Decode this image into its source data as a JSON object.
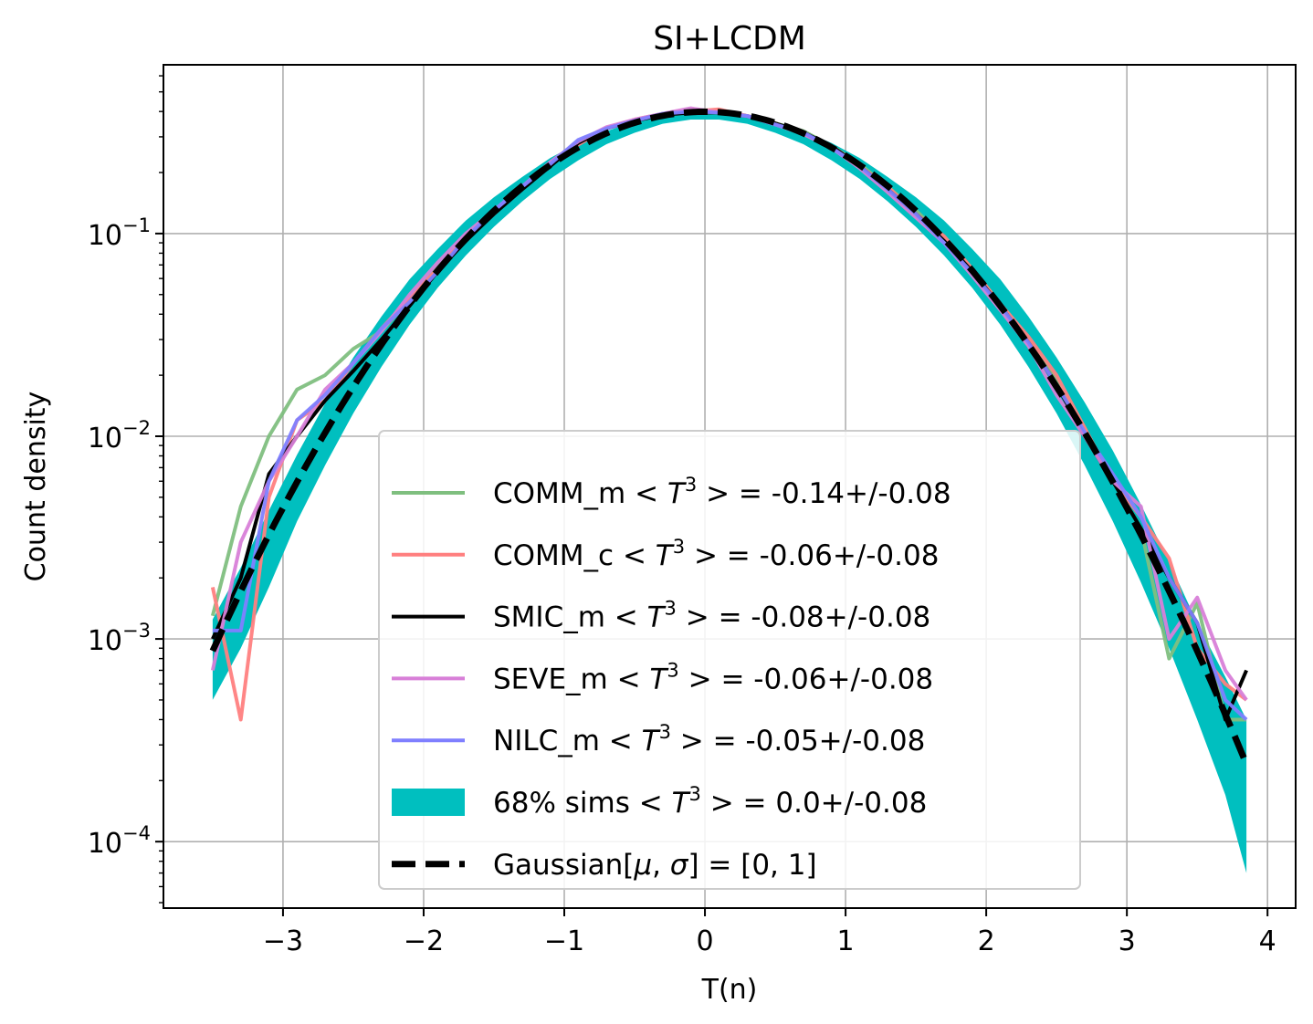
{
  "chart_data": {
    "type": "line",
    "title": "SI+LCDM",
    "xlabel": "T(n)",
    "ylabel": "Count density",
    "yscale": "log",
    "xlim": [
      -3.85,
      4.2
    ],
    "ylim": [
      4.7e-05,
      0.68
    ],
    "grid": true,
    "legend_position": "lower-center",
    "x_ticks": [
      {
        "value": -3,
        "label": "−3"
      },
      {
        "value": -2,
        "label": "−2"
      },
      {
        "value": -1,
        "label": "−1"
      },
      {
        "value": 0,
        "label": "0"
      },
      {
        "value": 1,
        "label": "1"
      },
      {
        "value": 2,
        "label": "2"
      },
      {
        "value": 3,
        "label": "3"
      },
      {
        "value": 4,
        "label": "4"
      }
    ],
    "y_ticks": [
      {
        "value": 0.1,
        "base": "10",
        "exp": "−1"
      },
      {
        "value": 0.01,
        "base": "10",
        "exp": "−2"
      },
      {
        "value": 0.001,
        "base": "10",
        "exp": "−3"
      },
      {
        "value": 0.0001,
        "base": "10",
        "exp": "−4"
      }
    ],
    "x": [
      -3.5,
      -3.3,
      -3.1,
      -2.9,
      -2.7,
      -2.5,
      -2.3,
      -2.1,
      -1.9,
      -1.7,
      -1.5,
      -1.3,
      -1.1,
      -0.9,
      -0.7,
      -0.5,
      -0.3,
      -0.1,
      0.1,
      0.3,
      0.5,
      0.7,
      0.9,
      1.1,
      1.3,
      1.5,
      1.7,
      1.9,
      2.1,
      2.3,
      2.5,
      2.7,
      2.9,
      3.1,
      3.3,
      3.5,
      3.7,
      3.85
    ],
    "series": [
      {
        "name": "COMM_m",
        "stat_value": "-0.14+/-0.08",
        "color": "#7fbf7f",
        "width": 4,
        "values": [
          0.0013,
          0.0045,
          0.01,
          0.017,
          0.02,
          0.027,
          0.033,
          0.047,
          0.068,
          0.095,
          0.13,
          0.17,
          0.22,
          0.28,
          0.33,
          0.36,
          0.385,
          0.395,
          0.395,
          0.38,
          0.35,
          0.32,
          0.27,
          0.22,
          0.17,
          0.13,
          0.095,
          0.067,
          0.045,
          0.03,
          0.019,
          0.011,
          0.006,
          0.0035,
          0.0008,
          0.0015,
          0.0004,
          0.0004
        ]
      },
      {
        "name": "COMM_c",
        "stat_value": "-0.06+/-0.08",
        "color": "#ff7f7f",
        "width": 4,
        "values": [
          0.0018,
          0.0004,
          0.005,
          0.012,
          0.015,
          0.023,
          0.034,
          0.048,
          0.067,
          0.097,
          0.125,
          0.17,
          0.22,
          0.275,
          0.33,
          0.365,
          0.39,
          0.4,
          0.41,
          0.38,
          0.35,
          0.31,
          0.27,
          0.215,
          0.17,
          0.125,
          0.097,
          0.067,
          0.045,
          0.031,
          0.02,
          0.011,
          0.006,
          0.004,
          0.0025,
          0.0009,
          0.0006,
          0.0005
        ]
      },
      {
        "name": "SMIC_m",
        "stat_value": "-0.08+/-0.08",
        "color": "#000000",
        "width": 4,
        "values": [
          0.001,
          0.002,
          0.0065,
          0.01,
          0.015,
          0.021,
          0.03,
          0.044,
          0.065,
          0.092,
          0.125,
          0.165,
          0.215,
          0.28,
          0.33,
          0.36,
          0.385,
          0.395,
          0.395,
          0.38,
          0.35,
          0.315,
          0.27,
          0.215,
          0.165,
          0.125,
          0.092,
          0.065,
          0.044,
          0.029,
          0.018,
          0.01,
          0.006,
          0.0035,
          0.002,
          0.0012,
          0.0004,
          0.0007
        ]
      },
      {
        "name": "SEVE_m",
        "stat_value": "-0.06+/-0.08",
        "color": "#d87fd8",
        "width": 4,
        "values": [
          0.0007,
          0.003,
          0.006,
          0.01,
          0.017,
          0.023,
          0.033,
          0.05,
          0.072,
          0.1,
          0.13,
          0.17,
          0.225,
          0.285,
          0.335,
          0.365,
          0.39,
          0.415,
          0.395,
          0.38,
          0.345,
          0.31,
          0.265,
          0.21,
          0.16,
          0.12,
          0.09,
          0.062,
          0.042,
          0.028,
          0.016,
          0.01,
          0.006,
          0.0045,
          0.001,
          0.0016,
          0.0007,
          0.0005
        ]
      },
      {
        "name": "NILC_m",
        "stat_value": "-0.05+/-0.08",
        "color": "#7f7fff",
        "width": 4,
        "values": [
          0.0011,
          0.0011,
          0.006,
          0.012,
          0.016,
          0.023,
          0.034,
          0.046,
          0.065,
          0.095,
          0.13,
          0.17,
          0.22,
          0.29,
          0.33,
          0.36,
          0.39,
          0.4,
          0.395,
          0.38,
          0.345,
          0.315,
          0.265,
          0.215,
          0.165,
          0.125,
          0.09,
          0.064,
          0.044,
          0.029,
          0.018,
          0.0105,
          0.0065,
          0.004,
          0.002,
          0.0012,
          0.0005,
          0.0004
        ]
      }
    ],
    "band": {
      "name": "68% sims",
      "stat_value": "0.0+/-0.08",
      "color": "#00bfbf",
      "upper": [
        0.00125,
        0.00225,
        0.0043,
        0.0081,
        0.0145,
        0.0245,
        0.039,
        0.0595,
        0.084,
        0.116,
        0.151,
        0.19,
        0.236,
        0.28,
        0.32,
        0.357,
        0.38,
        0.397,
        0.397,
        0.38,
        0.357,
        0.32,
        0.28,
        0.236,
        0.19,
        0.151,
        0.116,
        0.084,
        0.0595,
        0.039,
        0.0245,
        0.0147,
        0.0085,
        0.0046,
        0.0024,
        0.0012,
        0.00065,
        0.0004
      ],
      "lower": [
        0.0005,
        0.0009,
        0.0018,
        0.0038,
        0.0072,
        0.013,
        0.022,
        0.0355,
        0.054,
        0.078,
        0.108,
        0.144,
        0.186,
        0.23,
        0.276,
        0.314,
        0.348,
        0.365,
        0.365,
        0.348,
        0.314,
        0.276,
        0.23,
        0.186,
        0.144,
        0.108,
        0.078,
        0.054,
        0.0355,
        0.022,
        0.013,
        0.0072,
        0.0038,
        0.0019,
        0.0009,
        0.0004,
        0.00017,
        7e-05
      ]
    },
    "gaussian": {
      "name": "Gaussian",
      "mu": 0,
      "sigma": 1,
      "color": "#000000"
    },
    "legend_entries": [
      {
        "label": "COMM_m",
        "stat": "-0.14+/-0.08",
        "color": "#7fbf7f",
        "kind": "line"
      },
      {
        "label": "COMM_c",
        "stat": "-0.06+/-0.08",
        "color": "#ff7f7f",
        "kind": "line"
      },
      {
        "label": "SMIC_m",
        "stat": "-0.08+/-0.08",
        "color": "#000000",
        "kind": "line"
      },
      {
        "label": "SEVE_m",
        "stat": "-0.06+/-0.08",
        "color": "#d87fd8",
        "kind": "line"
      },
      {
        "label": "NILC_m",
        "stat": "-0.05+/-0.08",
        "color": "#7f7fff",
        "kind": "line"
      },
      {
        "label": "68% sims",
        "stat": "0.0+/-0.08",
        "color": "#00bfbf",
        "kind": "patch"
      },
      {
        "label": "Gaussian",
        "stat": "[0, 1]",
        "color": "#000000",
        "kind": "dashed"
      }
    ]
  }
}
